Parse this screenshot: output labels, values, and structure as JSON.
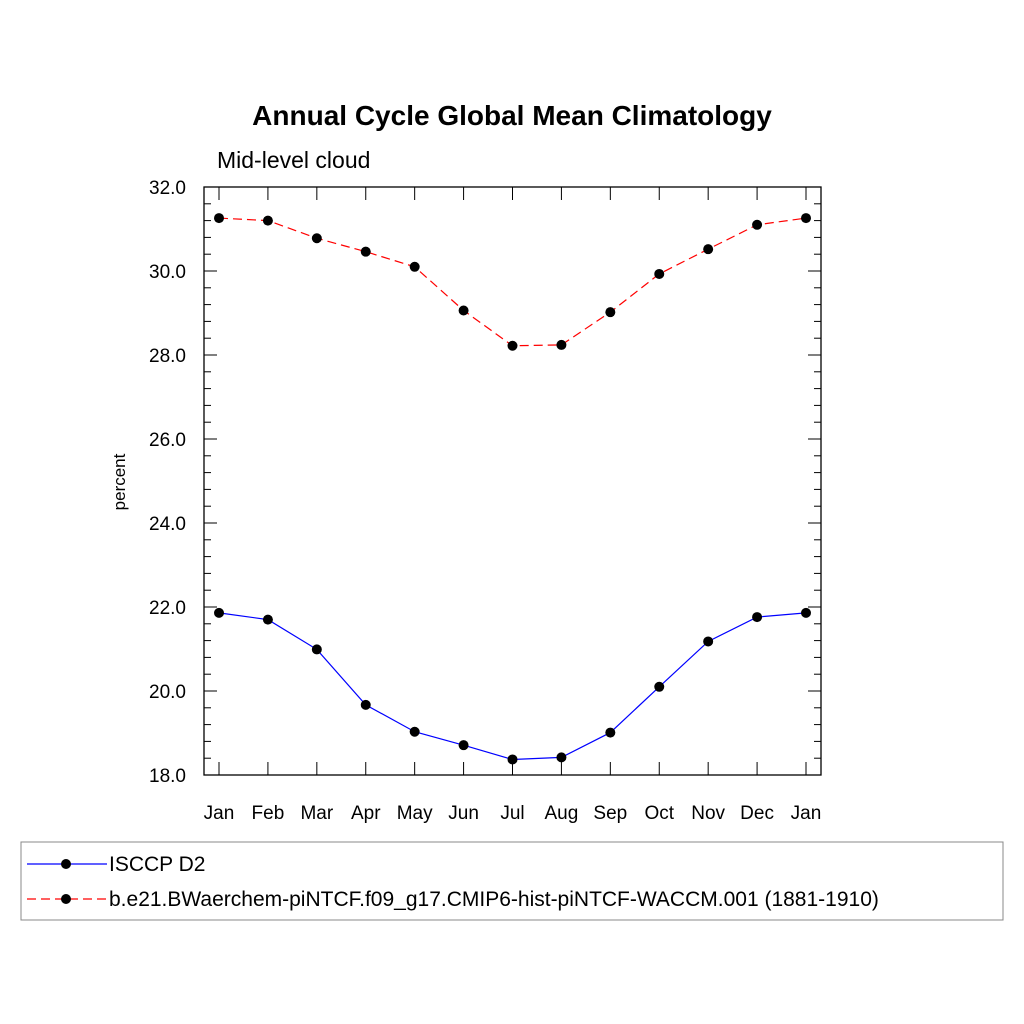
{
  "chart_data": {
    "type": "line",
    "title": "Annual Cycle Global Mean Climatology",
    "subtitle": "Mid-level cloud",
    "ylabel": "percent",
    "xlabel": "",
    "ylim": [
      18.0,
      32.0
    ],
    "yticks": [
      "18.0",
      "20.0",
      "22.0",
      "24.0",
      "26.0",
      "28.0",
      "30.0",
      "32.0"
    ],
    "categories": [
      "Jan",
      "Feb",
      "Mar",
      "Apr",
      "May",
      "Jun",
      "Jul",
      "Aug",
      "Sep",
      "Oct",
      "Nov",
      "Dec",
      "Jan"
    ],
    "legend_position": "bottom",
    "series": [
      {
        "name": "ISCCP D2",
        "color": "#0000ff",
        "dash": "solid",
        "marker": "filled-circle",
        "values": [
          21.86,
          21.7,
          20.99,
          19.67,
          19.03,
          18.71,
          18.37,
          18.42,
          19.01,
          20.1,
          21.18,
          21.76,
          21.86
        ]
      },
      {
        "name": "b.e21.BWaerchem-piNTCF.f09_g17.CMIP6-hist-piNTCF-WACCM.001 (1881-1910)",
        "color": "#ff0000",
        "dash": "dashed",
        "marker": "filled-circle",
        "values": [
          31.26,
          31.2,
          30.78,
          30.46,
          30.1,
          29.06,
          28.22,
          28.24,
          29.02,
          29.93,
          30.52,
          31.1,
          31.26
        ]
      }
    ]
  }
}
